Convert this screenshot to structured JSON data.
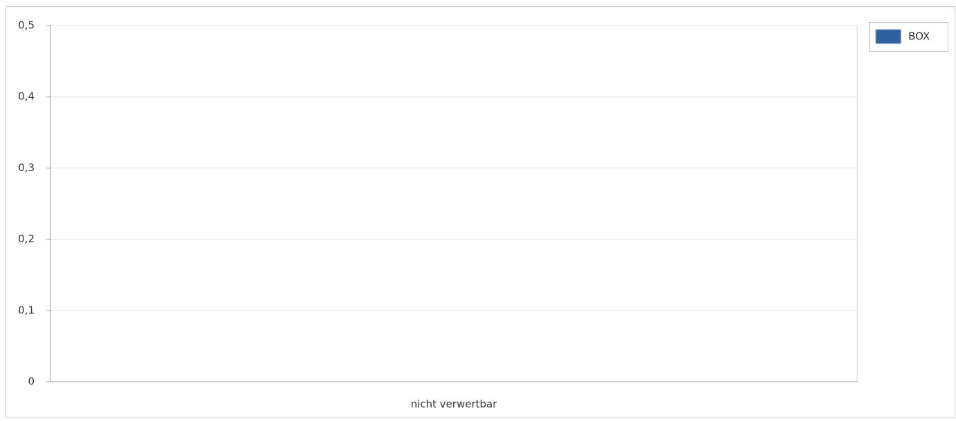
{
  "chart_data": {
    "type": "bar",
    "categories": [
      "nicht verwertbar"
    ],
    "series": [
      {
        "name": "BOX",
        "color": "#2e5f9e",
        "values": [
          0
        ]
      }
    ],
    "ylim": [
      0,
      0.5
    ],
    "yticks": [
      0,
      {
        "value": 0.1,
        "label": "0,1"
      },
      {
        "value": 0.2,
        "label": "0,2"
      },
      {
        "value": 0.3,
        "label": "0,3"
      },
      {
        "value": 0.4,
        "label": "0,4"
      },
      {
        "value": 0.5,
        "label": "0,5"
      }
    ],
    "grid": true,
    "legend": "top-right"
  }
}
